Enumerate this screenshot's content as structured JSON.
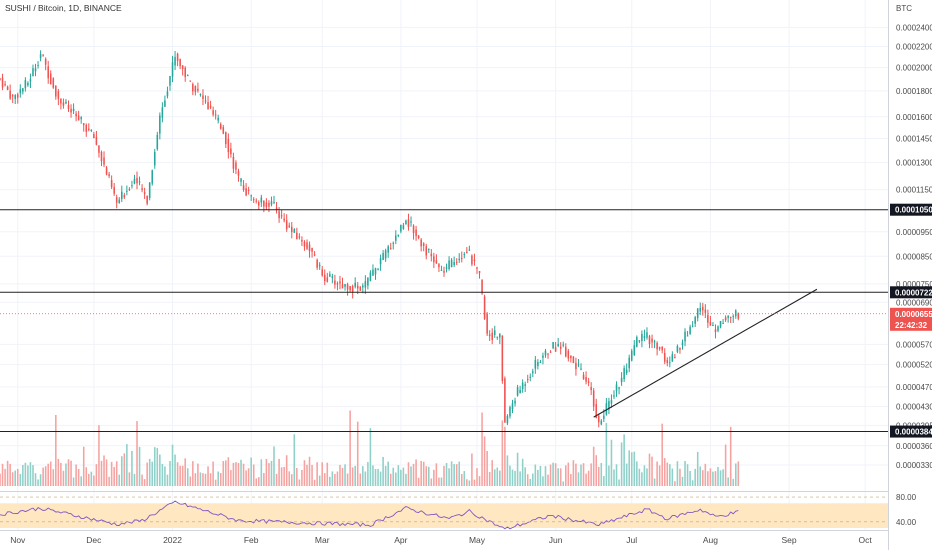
{
  "colors": {
    "up": "#26a69a",
    "down": "#ef5350",
    "volume_up": "#8fd0c8",
    "volume_down": "#f5a3a1",
    "level_line": "#222222",
    "trend_line": "#222222",
    "rsi_line": "#7e57c2",
    "rsi_band": "#ffe7c2",
    "badge_dark": "#131722",
    "badge_price": "#ef5350"
  },
  "chart_data": {
    "type": "candlestick",
    "title": "SUSHI / Bitcoin, 1D, BINANCE",
    "currency": "BTC",
    "y_scale": "log",
    "ylim": [
      3e-05,
      0.000255
    ],
    "y_ticks": [
      "0.0002400",
      "0.0002200",
      "0.0002000",
      "0.0001800",
      "0.0001600",
      "0.0001450",
      "0.0001300",
      "0.0001150",
      "0.0000950",
      "0.0000850",
      "0.0000750",
      "0.0000690",
      "0.0000570",
      "0.0000520",
      "0.0000470",
      "0.0000430",
      "0.0000395",
      "0.0000360",
      "0.0000330"
    ],
    "x_range": [
      "2021-10-25",
      "2022-10-10"
    ],
    "x_ticks": [
      {
        "label": "Nov",
        "date": "2021-11-01"
      },
      {
        "label": "Dec",
        "date": "2021-12-01"
      },
      {
        "label": "2022",
        "date": "2022-01-01"
      },
      {
        "label": "Feb",
        "date": "2022-02-01"
      },
      {
        "label": "Mar",
        "date": "2022-03-01"
      },
      {
        "label": "Apr",
        "date": "2022-04-01"
      },
      {
        "label": "May",
        "date": "2022-05-01"
      },
      {
        "label": "Jun",
        "date": "2022-06-01"
      },
      {
        "label": "Jul",
        "date": "2022-07-01"
      },
      {
        "label": "Aug",
        "date": "2022-08-01"
      },
      {
        "label": "Sep",
        "date": "2022-09-01"
      },
      {
        "label": "Oct",
        "date": "2022-10-01"
      }
    ],
    "price_path": [
      {
        "date": "2021-10-25",
        "price": 0.00019
      },
      {
        "date": "2021-10-30",
        "price": 0.000174
      },
      {
        "date": "2021-11-05",
        "price": 0.000187
      },
      {
        "date": "2021-11-10",
        "price": 0.000213
      },
      {
        "date": "2021-11-17",
        "price": 0.000174
      },
      {
        "date": "2021-11-24",
        "price": 0.00016
      },
      {
        "date": "2021-12-01",
        "price": 0.000146
      },
      {
        "date": "2021-12-05",
        "price": 0.000128
      },
      {
        "date": "2021-12-10",
        "price": 0.000108
      },
      {
        "date": "2021-12-17",
        "price": 0.000121
      },
      {
        "date": "2021-12-22",
        "price": 0.00011
      },
      {
        "date": "2021-12-27",
        "price": 0.00016
      },
      {
        "date": "2022-01-02",
        "price": 0.000212
      },
      {
        "date": "2022-01-07",
        "price": 0.00019
      },
      {
        "date": "2022-01-14",
        "price": 0.00017
      },
      {
        "date": "2022-01-21",
        "price": 0.00015
      },
      {
        "date": "2022-01-27",
        "price": 0.00012
      },
      {
        "date": "2022-02-02",
        "price": 0.000109
      },
      {
        "date": "2022-02-09",
        "price": 0.000108
      },
      {
        "date": "2022-02-17",
        "price": 9.5e-05
      },
      {
        "date": "2022-02-24",
        "price": 8.8e-05
      },
      {
        "date": "2022-03-01",
        "price": 7.8e-05
      },
      {
        "date": "2022-03-09",
        "price": 7.45e-05
      },
      {
        "date": "2022-03-17",
        "price": 7.35e-05
      },
      {
        "date": "2022-03-24",
        "price": 8.3e-05
      },
      {
        "date": "2022-03-31",
        "price": 9.5e-05
      },
      {
        "date": "2022-04-03",
        "price": 0.000101
      },
      {
        "date": "2022-04-10",
        "price": 8.9e-05
      },
      {
        "date": "2022-04-17",
        "price": 7.9e-05
      },
      {
        "date": "2022-04-23",
        "price": 8.4e-05
      },
      {
        "date": "2022-04-27",
        "price": 8.8e-05
      },
      {
        "date": "2022-05-02",
        "price": 7.7e-05
      },
      {
        "date": "2022-05-05",
        "price": 6e-05
      },
      {
        "date": "2022-05-10",
        "price": 5.9e-05
      },
      {
        "date": "2022-05-12",
        "price": 4e-05
      },
      {
        "date": "2022-05-16",
        "price": 4.5e-05
      },
      {
        "date": "2022-05-24",
        "price": 5.2e-05
      },
      {
        "date": "2022-05-30",
        "price": 5.6e-05
      },
      {
        "date": "2022-06-03",
        "price": 5.7e-05
      },
      {
        "date": "2022-06-09",
        "price": 5.2e-05
      },
      {
        "date": "2022-06-15",
        "price": 4.6e-05
      },
      {
        "date": "2022-06-18",
        "price": 3.95e-05
      },
      {
        "date": "2022-06-23",
        "price": 4.5e-05
      },
      {
        "date": "2022-06-29",
        "price": 5.1e-05
      },
      {
        "date": "2022-07-03",
        "price": 5.8e-05
      },
      {
        "date": "2022-07-07",
        "price": 5.9e-05
      },
      {
        "date": "2022-07-12",
        "price": 5.6e-05
      },
      {
        "date": "2022-07-15",
        "price": 5.2e-05
      },
      {
        "date": "2022-07-19",
        "price": 5.6e-05
      },
      {
        "date": "2022-07-23",
        "price": 6e-05
      },
      {
        "date": "2022-07-28",
        "price": 6.8e-05
      },
      {
        "date": "2022-08-01",
        "price": 6.2e-05
      },
      {
        "date": "2022-08-03",
        "price": 6.1e-05
      },
      {
        "date": "2022-08-06",
        "price": 6.4e-05
      },
      {
        "date": "2022-08-09",
        "price": 6.5e-05
      },
      {
        "date": "2022-08-12",
        "price": 6.55e-05
      }
    ],
    "price_levels": [
      {
        "price": 0.000105,
        "label": "0.0001050"
      },
      {
        "price": 7.22e-05,
        "label": "0.0000722"
      },
      {
        "price": 3.84e-05,
        "label": "0.0000384"
      }
    ],
    "trendline": {
      "start": {
        "date": "2022-06-16",
        "price": 4.1e-05
      },
      "end": {
        "date": "2022-09-12",
        "price": 7.32e-05
      }
    },
    "last_price": {
      "price": 6.55e-05,
      "label": "0.0000655",
      "countdown": "22:42:32"
    },
    "rsi": {
      "ylim": [
        30,
        85
      ],
      "levels": [
        "80.00",
        "40.00"
      ],
      "band": [
        30,
        70
      ],
      "path": [
        {
          "date": "2021-10-25",
          "value": 52
        },
        {
          "date": "2021-11-10",
          "value": 62
        },
        {
          "date": "2021-12-10",
          "value": 36
        },
        {
          "date": "2021-12-20",
          "value": 42
        },
        {
          "date": "2022-01-02",
          "value": 72
        },
        {
          "date": "2022-01-27",
          "value": 42
        },
        {
          "date": "2022-02-25",
          "value": 38
        },
        {
          "date": "2022-03-20",
          "value": 35
        },
        {
          "date": "2022-04-03",
          "value": 62
        },
        {
          "date": "2022-04-20",
          "value": 45
        },
        {
          "date": "2022-04-28",
          "value": 57
        },
        {
          "date": "2022-05-12",
          "value": 28
        },
        {
          "date": "2022-05-30",
          "value": 50
        },
        {
          "date": "2022-06-18",
          "value": 35
        },
        {
          "date": "2022-07-07",
          "value": 60
        },
        {
          "date": "2022-07-15",
          "value": 45
        },
        {
          "date": "2022-07-28",
          "value": 60
        },
        {
          "date": "2022-08-03",
          "value": 48
        },
        {
          "date": "2022-08-12",
          "value": 56
        }
      ]
    }
  }
}
